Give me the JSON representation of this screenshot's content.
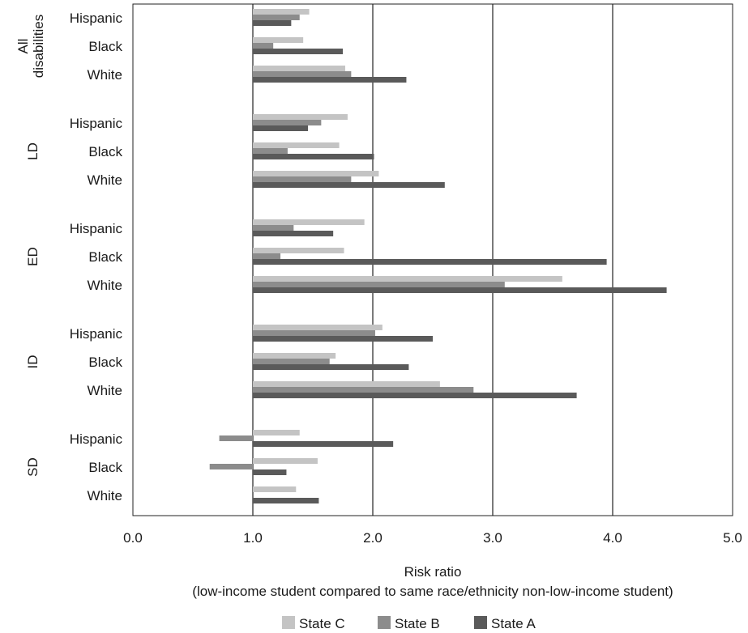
{
  "chart_data": {
    "type": "bar",
    "orientation": "horizontal",
    "xlabel": "Risk ratio",
    "xlabel_sub": "(low-income student compared to same race/ethnicity non-low-income student)",
    "xlim": [
      0,
      5
    ],
    "xticks": [
      "0.0",
      "1.0",
      "2.0",
      "3.0",
      "4.0",
      "5.0"
    ],
    "baseline": 1.0,
    "grid": "vertical lines at 1.0, 2.0, 3.0, 4.0",
    "legend_position": "bottom",
    "groups": [
      {
        "label": "All\ndisabilities",
        "rows": [
          {
            "label": "Hispanic",
            "values": {
              "State C": 1.47,
              "State B": 1.39,
              "State A": 1.32
            }
          },
          {
            "label": "Black",
            "values": {
              "State C": 1.42,
              "State B": 1.17,
              "State A": 1.75
            }
          },
          {
            "label": "White",
            "values": {
              "State C": 1.77,
              "State B": 1.82,
              "State A": 2.28
            }
          }
        ]
      },
      {
        "label": "LD",
        "rows": [
          {
            "label": "Hispanic",
            "values": {
              "State C": 1.79,
              "State B": 1.57,
              "State A": 1.46
            }
          },
          {
            "label": "Black",
            "values": {
              "State C": 1.72,
              "State B": 1.29,
              "State A": 2.01
            }
          },
          {
            "label": "White",
            "values": {
              "State C": 2.05,
              "State B": 1.82,
              "State A": 2.6
            }
          }
        ]
      },
      {
        "label": "ED",
        "rows": [
          {
            "label": "Hispanic",
            "values": {
              "State C": 1.93,
              "State B": 1.34,
              "State A": 1.67
            }
          },
          {
            "label": "Black",
            "values": {
              "State C": 1.76,
              "State B": 1.23,
              "State A": 3.95
            }
          },
          {
            "label": "White",
            "values": {
              "State C": 3.58,
              "State B": 3.1,
              "State A": 4.45
            }
          }
        ]
      },
      {
        "label": "ID",
        "rows": [
          {
            "label": "Hispanic",
            "values": {
              "State C": 2.08,
              "State B": 2.02,
              "State A": 2.5
            }
          },
          {
            "label": "Black",
            "values": {
              "State C": 1.69,
              "State B": 1.64,
              "State A": 2.3
            }
          },
          {
            "label": "White",
            "values": {
              "State C": 2.56,
              "State B": 2.84,
              "State A": 3.7
            }
          }
        ]
      },
      {
        "label": "SD",
        "rows": [
          {
            "label": "Hispanic",
            "values": {
              "State C": 1.39,
              "State B": 0.72,
              "State A": 2.17
            }
          },
          {
            "label": "Black",
            "values": {
              "State C": 1.54,
              "State B": 0.64,
              "State A": 1.28
            }
          },
          {
            "label": "White",
            "values": {
              "State C": 1.36,
              "State B": null,
              "State A": 1.55
            }
          }
        ]
      }
    ],
    "series": [
      {
        "name": "State C",
        "color": "#c4c4c4"
      },
      {
        "name": "State B",
        "color": "#8c8c8c"
      },
      {
        "name": "State A",
        "color": "#5a5a5a"
      }
    ]
  }
}
